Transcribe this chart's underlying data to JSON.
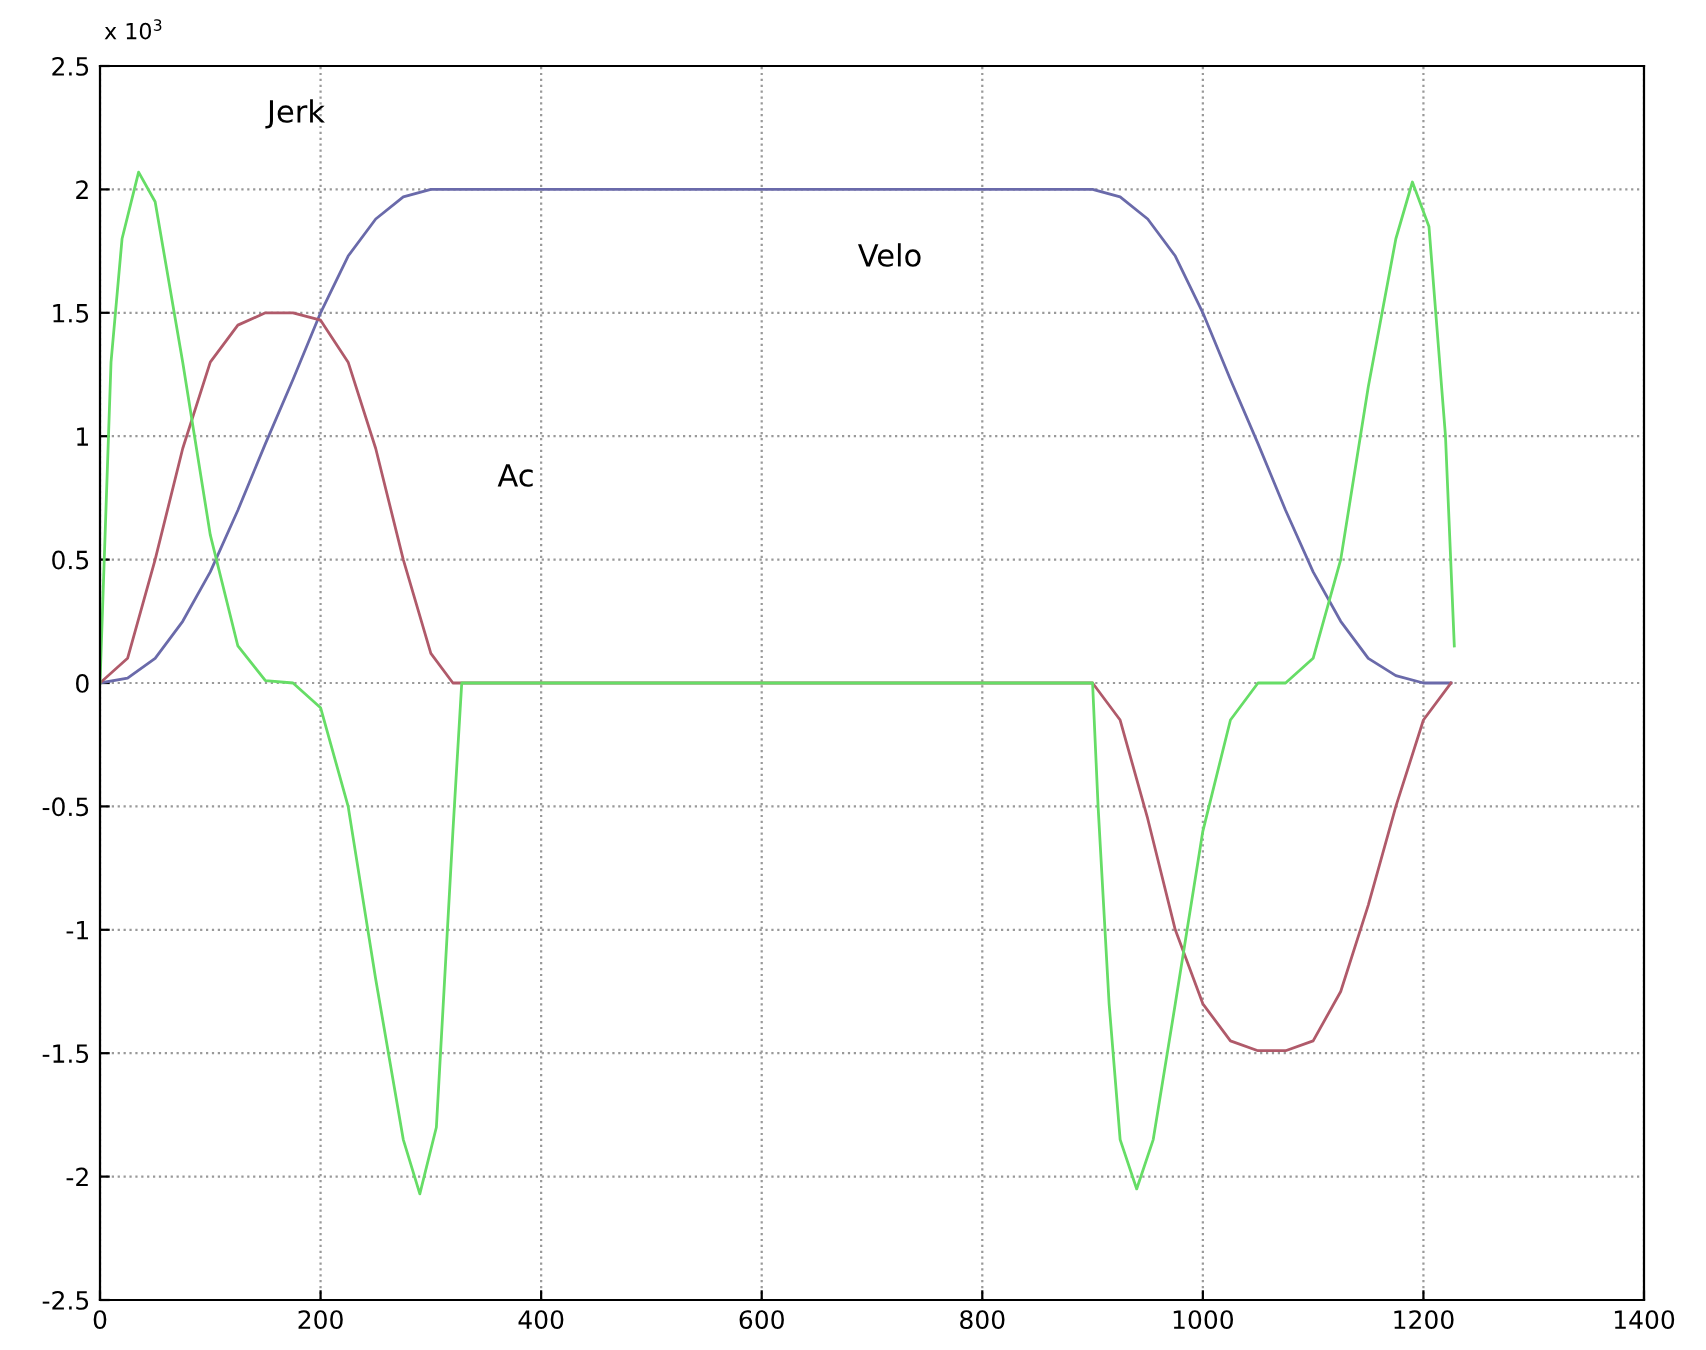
{
  "chart_data": {
    "type": "line",
    "xlim": [
      0,
      1400
    ],
    "xticks": [
      0,
      200,
      400,
      600,
      800,
      1000,
      1200,
      1400
    ],
    "ylim": [
      -2.5,
      2.5
    ],
    "yticks": [
      -2.5,
      -2,
      -1.5,
      -1,
      -0.5,
      0,
      0.5,
      1,
      1.5,
      2,
      2.5
    ],
    "grid": true,
    "line_style": "solid",
    "annotations": [
      "x 10$^{3}$",
      "Jerk",
      "Velo",
      "Ac"
    ],
    "series": [
      {
        "color": "#6a6aaa",
        "x": [
          0,
          25,
          50,
          75,
          100,
          125,
          150,
          175,
          200,
          225,
          250,
          275,
          300,
          900,
          925,
          950,
          975,
          1000,
          1025,
          1050,
          1075,
          1100,
          1125,
          1150,
          1175,
          1200,
          1225
        ],
        "values": [
          0,
          0.02,
          0.1,
          0.25,
          0.45,
          0.7,
          0.97,
          1.23,
          1.5,
          1.73,
          1.88,
          1.97,
          2.0,
          2.0,
          1.97,
          1.88,
          1.73,
          1.5,
          1.23,
          0.97,
          0.7,
          0.45,
          0.25,
          0.1,
          0.03,
          0.0,
          0
        ]
      },
      {
        "color": "#b05a6a",
        "x": [
          0,
          25,
          50,
          75,
          100,
          125,
          150,
          175,
          200,
          225,
          250,
          275,
          300,
          320,
          900,
          925,
          950,
          975,
          1000,
          1025,
          1050,
          1075,
          1100,
          1125,
          1150,
          1175,
          1200,
          1225
        ],
        "values": [
          0,
          0.1,
          0.5,
          0.95,
          1.3,
          1.45,
          1.5,
          1.5,
          1.47,
          1.3,
          0.95,
          0.5,
          0.12,
          0,
          0,
          -0.15,
          -0.55,
          -1.0,
          -1.3,
          -1.45,
          -1.49,
          -1.49,
          -1.45,
          -1.25,
          -0.9,
          -0.5,
          -0.15,
          0
        ]
      },
      {
        "color": "#66dd66",
        "x": [
          0,
          10,
          20,
          35,
          50,
          75,
          100,
          125,
          150,
          175,
          200,
          225,
          250,
          275,
          290,
          305,
          320,
          328,
          900,
          905,
          915,
          925,
          940,
          955,
          975,
          1000,
          1025,
          1050,
          1075,
          1100,
          1125,
          1150,
          1175,
          1190,
          1205,
          1220,
          1228
        ],
        "values": [
          0,
          1.3,
          1.8,
          2.07,
          1.95,
          1.3,
          0.6,
          0.15,
          0.01,
          0,
          -0.1,
          -0.5,
          -1.2,
          -1.85,
          -2.07,
          -1.8,
          -0.6,
          0,
          0,
          -0.5,
          -1.3,
          -1.85,
          -2.05,
          -1.85,
          -1.3,
          -0.6,
          -0.15,
          0,
          0,
          0.1,
          0.5,
          1.2,
          1.8,
          2.03,
          1.85,
          1.0,
          0.15
        ]
      }
    ]
  }
}
